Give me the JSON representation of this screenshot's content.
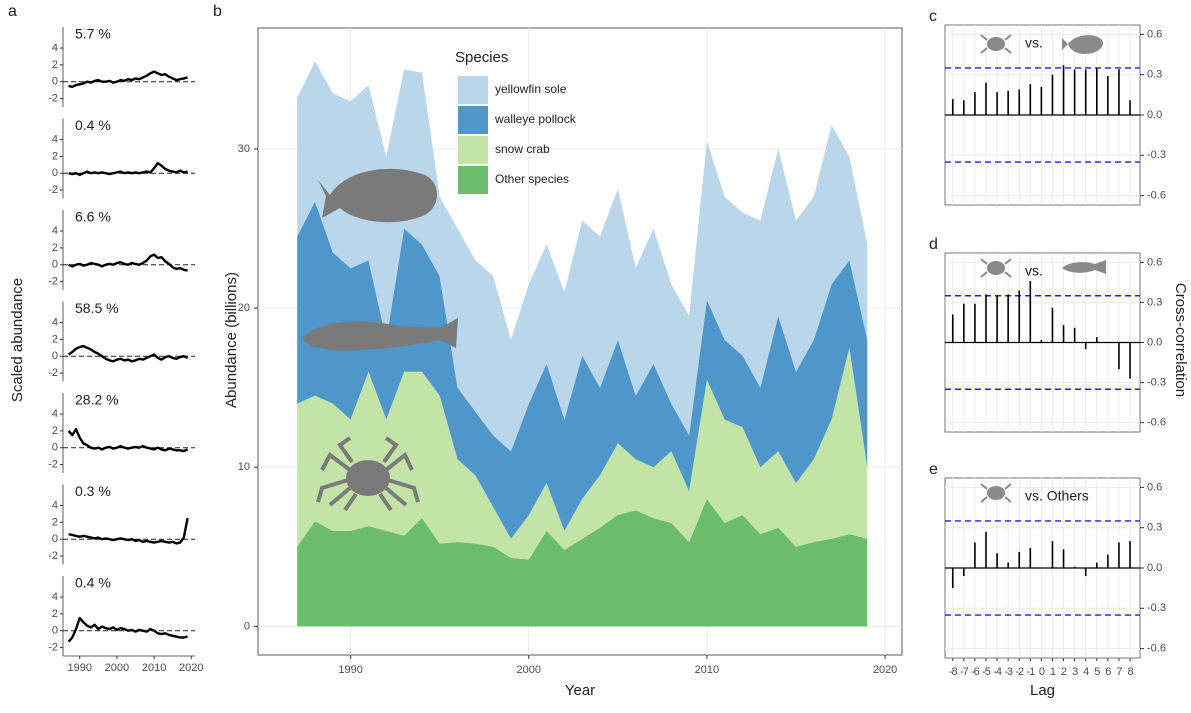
{
  "chart_data": [
    {
      "type": "line",
      "title": "a",
      "ylabel": "Scaled abundance",
      "annotation": "5.7 %",
      "color": "#000000",
      "hline": 0,
      "x": [
        1987,
        1988,
        1989,
        1990,
        1991,
        1992,
        1993,
        1994,
        1995,
        1996,
        1997,
        1998,
        1999,
        2000,
        2001,
        2002,
        2003,
        2004,
        2005,
        2006,
        2007,
        2008,
        2009,
        2010,
        2011,
        2012,
        2013,
        2014,
        2015,
        2016,
        2017,
        2018,
        2019
      ],
      "values": [
        -0.5,
        -0.6,
        -0.4,
        -0.3,
        -0.2,
        0,
        -0.1,
        0.1,
        0.2,
        0,
        0,
        0.1,
        -0.1,
        0,
        0.2,
        0.1,
        0.3,
        0.2,
        0.4,
        0.3,
        0.5,
        0.7,
        1,
        1.2,
        1,
        0.8,
        0.9,
        0.6,
        0.4,
        0.2,
        0.3,
        0.4,
        0.5
      ],
      "xlim": [
        1985.5,
        2021
      ],
      "ylim": [
        -3,
        6.5
      ],
      "yticks": [
        -2,
        0,
        2,
        4
      ]
    },
    {
      "type": "line",
      "annotation": "0.4 %",
      "color": "#000000",
      "hline": 0,
      "x": [
        1987,
        1988,
        1989,
        1990,
        1991,
        1992,
        1993,
        1994,
        1995,
        1996,
        1997,
        1998,
        1999,
        2000,
        2001,
        2002,
        2003,
        2004,
        2005,
        2006,
        2007,
        2008,
        2009,
        2010,
        2011,
        2012,
        2013,
        2014,
        2015,
        2016,
        2017,
        2018,
        2019
      ],
      "values": [
        0,
        -0.1,
        0,
        -0.2,
        0,
        0.2,
        0,
        0.1,
        0,
        0.1,
        0,
        -0.1,
        0,
        0.1,
        0.2,
        0,
        0.1,
        0,
        0.1,
        0,
        0.1,
        0.2,
        0.1,
        0.6,
        1.2,
        0.9,
        0.5,
        0.3,
        0.2,
        0.1,
        0.3,
        0.1,
        0.2
      ],
      "xlim": [
        1985.5,
        2021
      ],
      "ylim": [
        -3,
        6.5
      ],
      "yticks": [
        -2,
        0,
        2,
        4
      ]
    },
    {
      "type": "line",
      "annotation": "6.6 %",
      "color": "#000000",
      "hline": 0,
      "x": [
        1987,
        1988,
        1989,
        1990,
        1991,
        1992,
        1993,
        1994,
        1995,
        1996,
        1997,
        1998,
        1999,
        2000,
        2001,
        2002,
        2003,
        2004,
        2005,
        2006,
        2007,
        2008,
        2009,
        2010,
        2011,
        2012,
        2013,
        2014,
        2015,
        2016,
        2017,
        2018,
        2019
      ],
      "values": [
        0,
        -0.2,
        0,
        0.1,
        -0.1,
        0,
        0.2,
        0.1,
        0,
        -0.2,
        0,
        0.1,
        0,
        0.2,
        0.3,
        0.1,
        0,
        0.2,
        0.1,
        0,
        0.2,
        0.5,
        1,
        1.2,
        0.8,
        0.9,
        0.4,
        0.1,
        -0.3,
        -0.5,
        -0.4,
        -0.6,
        -0.7
      ],
      "xlim": [
        1985.5,
        2021
      ],
      "ylim": [
        -3,
        6.5
      ],
      "yticks": [
        -2,
        0,
        2,
        4
      ]
    },
    {
      "type": "line",
      "annotation": "58.5 %",
      "color": "#000000",
      "hline": 0,
      "x": [
        1987,
        1988,
        1989,
        1990,
        1991,
        1992,
        1993,
        1994,
        1995,
        1996,
        1997,
        1998,
        1999,
        2000,
        2001,
        2002,
        2003,
        2004,
        2005,
        2006,
        2007,
        2008,
        2009,
        2010,
        2011,
        2012,
        2013,
        2014,
        2015,
        2016,
        2017,
        2018,
        2019
      ],
      "values": [
        0.2,
        0.5,
        0.9,
        1.1,
        1.2,
        1,
        0.8,
        0.5,
        0.3,
        0,
        -0.3,
        -0.5,
        -0.6,
        -0.4,
        -0.3,
        -0.5,
        -0.4,
        -0.6,
        -0.5,
        -0.3,
        -0.4,
        -0.2,
        0,
        0.2,
        -0.2,
        -0.4,
        -0.1,
        0,
        -0.2,
        -0.3,
        -0.1,
        0,
        -0.2
      ],
      "xlim": [
        1985.5,
        2021
      ],
      "ylim": [
        -3,
        6.5
      ],
      "yticks": [
        -2,
        0,
        2,
        4
      ]
    },
    {
      "type": "line",
      "annotation": "28.2 %",
      "color": "#000000",
      "hline": 0,
      "x": [
        1987,
        1988,
        1989,
        1990,
        1991,
        1992,
        1993,
        1994,
        1995,
        1996,
        1997,
        1998,
        1999,
        2000,
        2001,
        2002,
        2003,
        2004,
        2005,
        2006,
        2007,
        2008,
        2009,
        2010,
        2011,
        2012,
        2013,
        2014,
        2015,
        2016,
        2017,
        2018,
        2019
      ],
      "values": [
        2,
        1.5,
        2.2,
        1.2,
        0.5,
        0.3,
        0,
        -0.1,
        0,
        -0.2,
        0,
        0.1,
        -0.1,
        0,
        0.2,
        0,
        -0.1,
        0,
        0.1,
        0,
        0.2,
        0,
        -0.1,
        -0.2,
        0,
        -0.2,
        -0.3,
        -0.1,
        -0.2,
        -0.3,
        -0.3,
        -0.4,
        -0.2
      ],
      "xlim": [
        1985.5,
        2021
      ],
      "ylim": [
        -3,
        6.5
      ],
      "yticks": [
        -2,
        0,
        2,
        4
      ]
    },
    {
      "type": "line",
      "annotation": "0.3 %",
      "color": "#000000",
      "hline": 0,
      "x": [
        1987,
        1988,
        1989,
        1990,
        1991,
        1992,
        1993,
        1994,
        1995,
        1996,
        1997,
        1998,
        1999,
        2000,
        2001,
        2002,
        2003,
        2004,
        2005,
        2006,
        2007,
        2008,
        2009,
        2010,
        2011,
        2012,
        2013,
        2014,
        2015,
        2016,
        2017,
        2018,
        2019
      ],
      "values": [
        0.6,
        0.5,
        0.4,
        0.3,
        0.4,
        0.3,
        0.2,
        0.1,
        0.2,
        0,
        0.1,
        0,
        -0.1,
        0,
        0.1,
        0,
        -0.1,
        0,
        -0.2,
        -0.1,
        -0.3,
        -0.2,
        -0.3,
        -0.4,
        -0.3,
        -0.2,
        -0.3,
        -0.4,
        -0.3,
        -0.5,
        -0.4,
        0.2,
        2.5
      ],
      "xlim": [
        1985.5,
        2021
      ],
      "ylim": [
        -3,
        6.5
      ],
      "yticks": [
        -2,
        0,
        2,
        4
      ]
    },
    {
      "type": "line",
      "annotation": "0.4 %",
      "color": "#000000",
      "hline": 0,
      "x": [
        1987,
        1988,
        1989,
        1990,
        1991,
        1992,
        1993,
        1994,
        1995,
        1996,
        1997,
        1998,
        1999,
        2000,
        2001,
        2002,
        2003,
        2004,
        2005,
        2006,
        2007,
        2008,
        2009,
        2010,
        2011,
        2012,
        2013,
        2014,
        2015,
        2016,
        2017,
        2018,
        2019
      ],
      "values": [
        -1.3,
        -0.8,
        0.2,
        1.5,
        1,
        0.6,
        0.4,
        0.7,
        0.2,
        0.5,
        0.3,
        0.2,
        0.4,
        0.1,
        0.3,
        0.2,
        0,
        0.1,
        -0.1,
        0.1,
        0,
        -0.1,
        0.2,
        0,
        -0.3,
        -0.4,
        -0.3,
        -0.5,
        -0.6,
        -0.7,
        -0.8,
        -0.8,
        -0.7
      ],
      "xlim": [
        1985.5,
        2021
      ],
      "ylim": [
        -3,
        6.5
      ],
      "yticks": [
        -2,
        0,
        2,
        4
      ],
      "xticks": [
        1990,
        2000,
        2010,
        2020
      ]
    },
    {
      "type": "area",
      "title": "b",
      "xlabel": "Year",
      "ylabel": "Abundance (billions)",
      "legend_title": "Species",
      "stacked": true,
      "grid": true,
      "x": [
        1987,
        1988,
        1989,
        1990,
        1991,
        1992,
        1993,
        1994,
        1995,
        1996,
        1997,
        1998,
        1999,
        2000,
        2001,
        2002,
        2003,
        2004,
        2005,
        2006,
        2007,
        2008,
        2009,
        2010,
        2011,
        2012,
        2013,
        2014,
        2015,
        2016,
        2017,
        2018,
        2019
      ],
      "series": [
        {
          "name": "yellowfin sole",
          "color": "#b9d6ea",
          "values": [
            8.7,
            8.8,
            10,
            10.5,
            11,
            11.5,
            10,
            10.8,
            5,
            10,
            9.5,
            10,
            7,
            7.5,
            7.5,
            8,
            8.5,
            9.5,
            9.5,
            8,
            8.5,
            7.5,
            7.5,
            10,
            9,
            9,
            10.5,
            10.5,
            9.5,
            9,
            10,
            6.5,
            6
          ]
        },
        {
          "name": "walleye pollock",
          "color": "#4f96ca",
          "values": [
            10.5,
            12.2,
            9.5,
            9.5,
            7,
            5,
            9,
            8,
            7.5,
            4.5,
            4,
            4.5,
            5.5,
            7,
            7.5,
            7,
            9,
            5.5,
            6.5,
            4,
            6.5,
            3,
            3.5,
            5,
            5,
            4.5,
            5,
            8.5,
            7,
            7.5,
            8.5,
            5.5,
            8
          ]
        },
        {
          "name": "snow crab",
          "color": "#c2e4a6",
          "values": [
            9,
            7.9,
            8,
            7,
            9.7,
            7,
            10.3,
            9.2,
            9.3,
            5.2,
            4.3,
            2.5,
            1.2,
            2.8,
            3,
            1.2,
            2.5,
            3.3,
            4.5,
            3.2,
            3.2,
            4.5,
            3.2,
            7.5,
            6.5,
            5.5,
            4.2,
            4.8,
            4,
            5.2,
            7.5,
            11.7,
            4.5
          ]
        },
        {
          "name": "Other species",
          "color": "#6bbd6b",
          "values": [
            5,
            6.6,
            6,
            6,
            6.3,
            6,
            5.7,
            6.8,
            5.2,
            5.3,
            5.2,
            5,
            4.3,
            4.2,
            6,
            4.8,
            5.5,
            6.2,
            7,
            7.3,
            6.8,
            6.5,
            5.3,
            8,
            6.5,
            7,
            5.8,
            6.2,
            5,
            5.3,
            5.5,
            5.8,
            5.5
          ]
        }
      ],
      "xlim": [
        1984.8,
        2020.95
      ],
      "ylim": [
        -1.8,
        37.6
      ],
      "xticks": [
        1990,
        2000,
        2010,
        2020
      ],
      "yticks": [
        0,
        10,
        20,
        30
      ]
    },
    {
      "type": "stem",
      "title": "c",
      "annotation": "vs.",
      "color": "#000000",
      "threshold": 0.35,
      "threshold_color": "#1f1fe6",
      "grid": true,
      "x": [
        -8,
        -7,
        -6,
        -5,
        -4,
        -3,
        -2,
        -1,
        0,
        1,
        2,
        3,
        4,
        5,
        6,
        7,
        8
      ],
      "values": [
        0.12,
        0.11,
        0.17,
        0.24,
        0.17,
        0.18,
        0.19,
        0.23,
        0.21,
        0.3,
        0.37,
        0.34,
        0.34,
        0.35,
        0.29,
        0.34,
        0.11
      ],
      "xlim": [
        -8.7,
        8.9
      ],
      "ylim": [
        -0.67,
        0.67
      ],
      "yticks": [
        -0.6,
        -0.3,
        {
          "value": 0,
          "label": "0.0"
        },
        0.3,
        0.6
      ]
    },
    {
      "type": "stem",
      "title": "d",
      "annotation": "vs.",
      "ylabel": "Cross-correlation",
      "color": "#000000",
      "threshold": 0.35,
      "threshold_color": "#1f1fe6",
      "grid": true,
      "x": [
        -8,
        -7,
        -6,
        -5,
        -4,
        -3,
        -2,
        -1,
        0,
        1,
        2,
        3,
        4,
        5,
        6,
        7,
        8
      ],
      "values": [
        0.21,
        0.29,
        0.29,
        0.36,
        0.35,
        0.36,
        0.39,
        0.46,
        0.02,
        0.26,
        0.13,
        0.11,
        -0.05,
        0.04,
        0,
        -0.2,
        -0.27
      ],
      "xlim": [
        -8.7,
        8.9
      ],
      "ylim": [
        -0.67,
        0.67
      ],
      "yticks": [
        -0.6,
        -0.3,
        {
          "value": 0,
          "label": "0.0"
        },
        0.3,
        0.6
      ]
    },
    {
      "type": "stem",
      "title": "e",
      "annotation": "vs. Others",
      "xlabel": "Lag",
      "color": "#000000",
      "threshold": 0.35,
      "threshold_color": "#1f1fe6",
      "grid": true,
      "x": [
        -8,
        -7,
        -6,
        -5,
        -4,
        -3,
        -2,
        -1,
        0,
        1,
        2,
        3,
        4,
        5,
        6,
        7,
        8
      ],
      "values": [
        -0.15,
        -0.06,
        0.19,
        0.27,
        0.11,
        0.04,
        0.12,
        0.15,
        0,
        0.2,
        0.14,
        0.01,
        -0.06,
        0.04,
        0.1,
        0.19,
        0.2
      ],
      "xlim": [
        -8.7,
        8.9
      ],
      "ylim": [
        -0.67,
        0.67
      ],
      "yticks": [
        -0.6,
        -0.3,
        {
          "value": 0,
          "label": "0.0"
        },
        0.3,
        0.6
      ],
      "xticks": [
        -8,
        -7,
        -6,
        -5,
        -4,
        -3,
        -2,
        -1,
        0,
        1,
        2,
        3,
        4,
        5,
        6,
        7,
        8
      ]
    }
  ]
}
